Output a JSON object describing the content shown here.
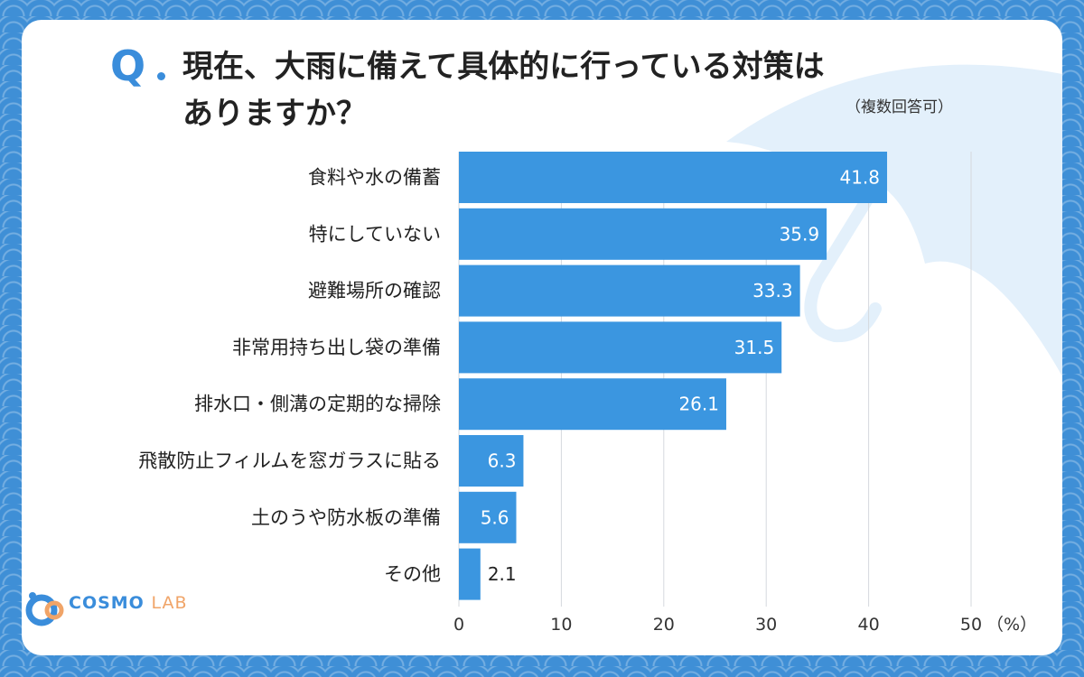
{
  "title": "現在、大雨に備えて具体的に行っている対策は\nありますか？",
  "q_label": "Q",
  "note": "（複数回答可）",
  "logo": {
    "main": "COSMO",
    "sub": "LAB"
  },
  "colors": {
    "bar": "#3b96e0",
    "text": "#222222",
    "accent": "#3a8ddb"
  },
  "chart_data": {
    "type": "bar",
    "orientation": "horizontal",
    "categories": [
      "食料や水の備蓄",
      "特にしていない",
      "避難場所の確認",
      "非常用持ち出し袋の準備",
      "排水口・側溝の定期的な掃除",
      "飛散防止フィルムを窓ガラスに貼る",
      "土のうや防水板の準備",
      "その他"
    ],
    "values": [
      41.8,
      35.9,
      33.3,
      31.5,
      26.1,
      6.3,
      5.6,
      2.1
    ],
    "value_labels": [
      "41.8",
      "35.9",
      "33.3",
      "31.5",
      "26.1",
      "6.3",
      "5.6",
      "2.1"
    ],
    "xlim": [
      0,
      50
    ],
    "xticks": [
      "0",
      "10",
      "20",
      "30",
      "40",
      "50"
    ],
    "unit_label": "（%）",
    "grid": true
  }
}
